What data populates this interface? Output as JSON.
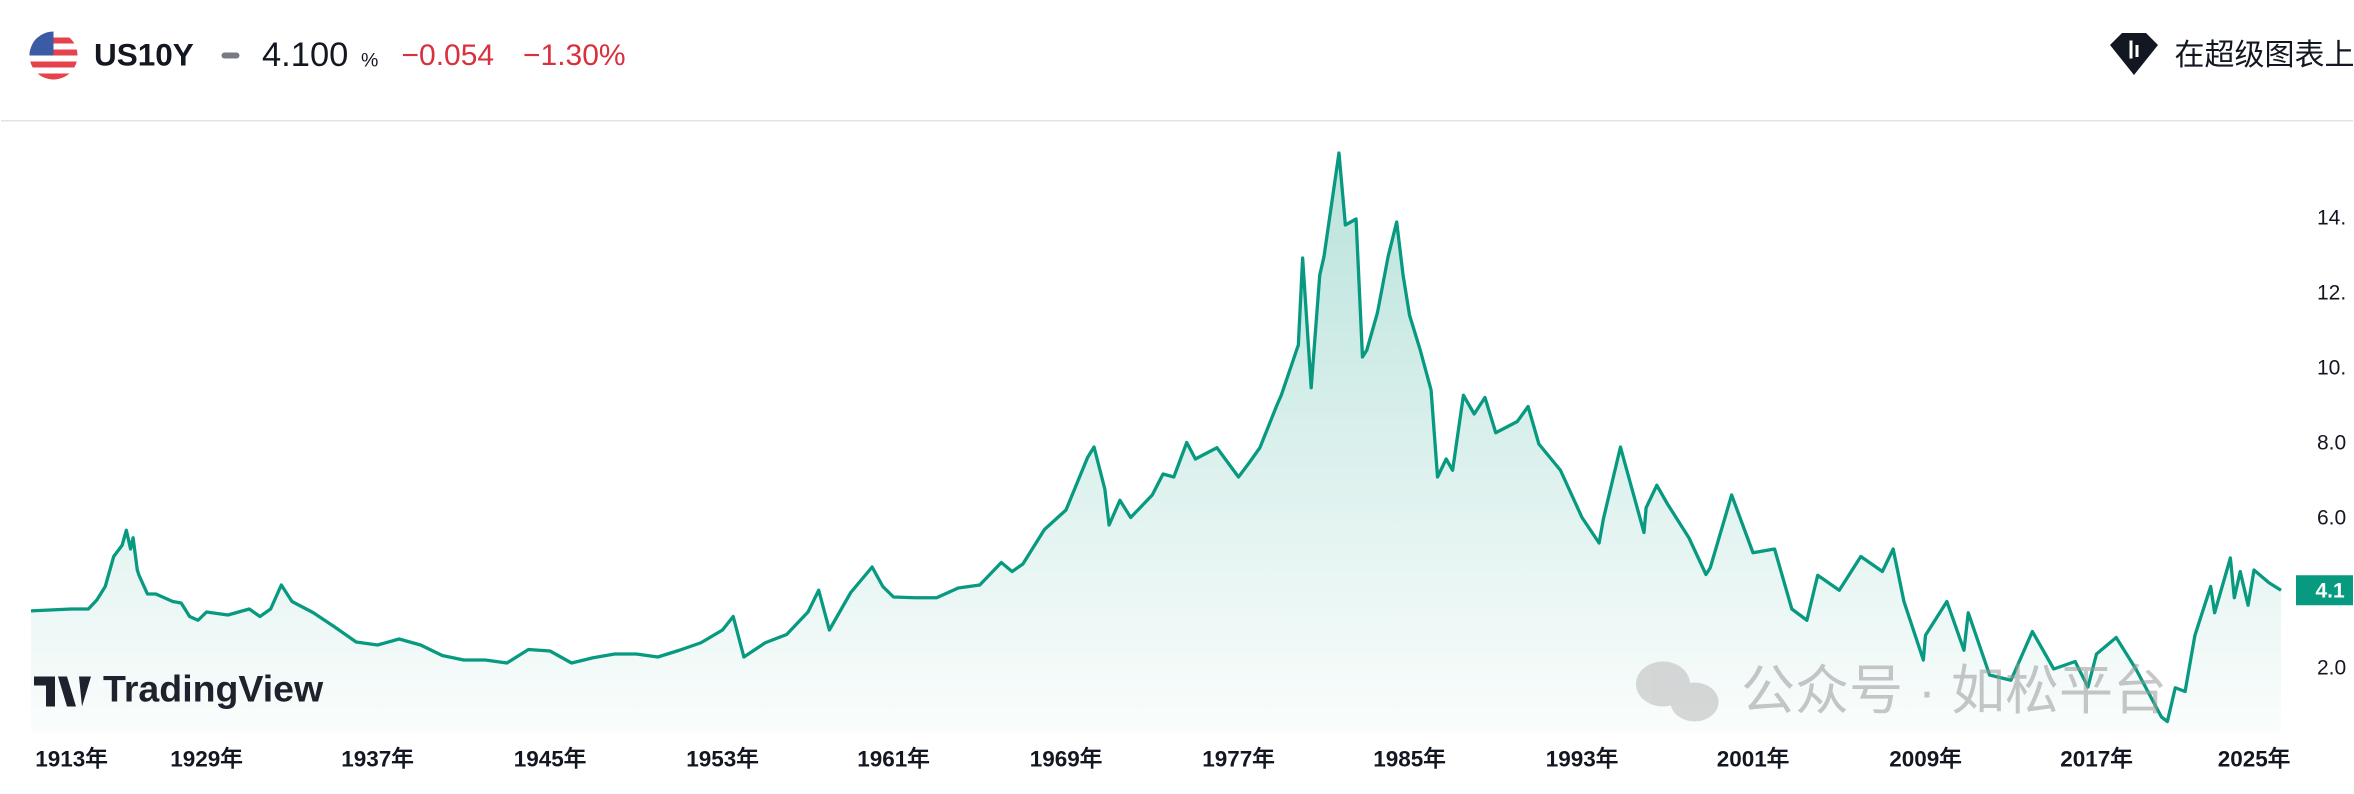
{
  "header": {
    "symbol": "US10Y",
    "price": "4.100",
    "unit": "%",
    "change": "−0.054",
    "change_percent": "−1.30%",
    "action": "在超级图表上"
  },
  "watermarks": [
    "TradingView",
    "公众号 · 如松平台"
  ],
  "chart_data": {
    "type": "line",
    "series": [
      {
        "color": "#089981",
        "x": [
          1912,
          1913,
          1914,
          1915,
          1916,
          1917,
          1918,
          1919,
          1919.5,
          1920,
          1920.3,
          1920.8,
          1921,
          1922,
          1923,
          1924,
          1925,
          1926,
          1927,
          1928,
          1929,
          1930,
          1931,
          1931.5,
          1932,
          1932.5,
          1933,
          1934,
          1935,
          1936,
          1937,
          1938,
          1939,
          1940,
          1941,
          1942,
          1943,
          1944,
          1945,
          1946,
          1947,
          1948,
          1949,
          1950,
          1951,
          1952,
          1953,
          1953.5,
          1954,
          1955,
          1956,
          1957,
          1957.5,
          1958,
          1959,
          1960,
          1960.5,
          1961,
          1962,
          1963,
          1964,
          1965,
          1966,
          1966.5,
          1967,
          1968,
          1969,
          1970,
          1970.3,
          1970.8,
          1971,
          1971.5,
          1972,
          1973,
          1973.5,
          1974,
          1974.6,
          1975,
          1976,
          1977,
          1977.5,
          1978,
          1978.8,
          1979,
          1979.8,
          1980,
          1980.4,
          1980.8,
          1981,
          1981.7,
          1982,
          1982.5,
          1982.8,
          1983,
          1983.5,
          1984,
          1984.4,
          1984.7,
          1985,
          1985.5,
          1986,
          1986.3,
          1986.7,
          1987,
          1987.5,
          1988,
          1988.5,
          1989,
          1990,
          1990.5,
          1991,
          1992,
          1993,
          1993.8,
          1994,
          1994.8,
          1995,
          1995.9,
          1996,
          1996.5,
          1997,
          1998,
          1998.8,
          1999,
          2000,
          2001,
          2002,
          2002.8,
          2003.5,
          2004,
          2005,
          2006,
          2007,
          2007.5,
          2008,
          2008.9,
          2009,
          2010,
          2010.8,
          2011,
          2012,
          2013,
          2014,
          2015,
          2016,
          2016.6,
          2017,
          2018,
          2019,
          2020.3,
          2020.6,
          2021,
          2021.5,
          2022,
          2022.8,
          2023,
          2023.8,
          2024,
          2024.3,
          2024.7,
          2025,
          2025.5,
          2025.9
        ],
        "values": [
          3.55,
          3.6,
          3.6,
          3.6,
          3.84,
          4.2,
          5.0,
          5.3,
          5.7,
          5.2,
          5.5,
          4.64,
          4.5,
          4.0,
          4.0,
          3.9,
          3.8,
          3.76,
          3.4,
          3.3,
          3.52,
          3.44,
          3.6,
          3.4,
          3.6,
          4.24,
          3.8,
          3.5,
          3.12,
          2.72,
          2.64,
          2.8,
          2.64,
          2.36,
          2.24,
          2.24,
          2.16,
          2.52,
          2.48,
          2.16,
          2.3,
          2.4,
          2.4,
          2.32,
          2.5,
          2.7,
          3.04,
          3.4,
          2.32,
          2.7,
          2.92,
          3.52,
          4.1,
          3.04,
          4.04,
          4.72,
          4.2,
          3.92,
          3.9,
          3.9,
          4.16,
          4.24,
          4.84,
          4.6,
          4.8,
          5.72,
          6.24,
          7.64,
          7.92,
          6.8,
          5.84,
          6.5,
          6.04,
          6.64,
          7.2,
          7.12,
          8.04,
          7.6,
          7.9,
          7.12,
          7.5,
          7.9,
          9.04,
          9.3,
          10.64,
          12.96,
          9.5,
          12.5,
          13.0,
          15.76,
          13.84,
          14.0,
          10.32,
          10.5,
          11.5,
          13.0,
          13.92,
          12.5,
          11.44,
          10.5,
          9.44,
          7.12,
          7.6,
          7.3,
          9.3,
          8.8,
          9.24,
          8.3,
          8.6,
          9.0,
          8.0,
          7.3,
          6.04,
          5.36,
          6.0,
          7.92,
          7.5,
          5.64,
          6.3,
          6.9,
          6.4,
          5.5,
          4.52,
          4.7,
          6.64,
          5.1,
          5.2,
          3.6,
          3.3,
          4.5,
          4.1,
          5.0,
          4.6,
          5.2,
          3.8,
          2.24,
          2.9,
          3.8,
          2.5,
          3.5,
          1.84,
          1.7,
          3.0,
          2.0,
          2.2,
          1.52,
          2.4,
          2.84,
          2.0,
          0.72,
          0.6,
          1.5,
          1.4,
          2.9,
          4.2,
          3.5,
          4.96,
          3.9,
          4.6,
          3.7,
          4.64,
          4.3,
          4.1
        ]
      }
    ],
    "current_price_label": "4.1",
    "xlim": [
      1912,
      2025.9
    ],
    "xticks": [
      {
        "value": 1913,
        "label": "1913年"
      },
      {
        "value": 1929,
        "label": "1929年"
      },
      {
        "value": 1937,
        "label": "1937年"
      },
      {
        "value": 1945,
        "label": "1945年"
      },
      {
        "value": 1953,
        "label": "1953年"
      },
      {
        "value": 1961,
        "label": "1961年"
      },
      {
        "value": 1969,
        "label": "1969年"
      },
      {
        "value": 1977,
        "label": "1977年"
      },
      {
        "value": 1985,
        "label": "1985年"
      },
      {
        "value": 1993,
        "label": "1993年"
      },
      {
        "value": 2001,
        "label": "2001年"
      },
      {
        "value": 2009,
        "label": "2009年"
      },
      {
        "value": 2017,
        "label": "2017年"
      },
      {
        "value": 2025,
        "label": "2025年"
      }
    ],
    "ylim": [
      0.3,
      16.6
    ],
    "yticks": [
      {
        "value": 2,
        "label": "2.0"
      },
      {
        "value": 6,
        "label": "6.0"
      },
      {
        "value": 8,
        "label": "8.0"
      },
      {
        "value": 10,
        "label": "10."
      },
      {
        "value": 12,
        "label": "12."
      },
      {
        "value": 14,
        "label": "14."
      }
    ],
    "grid": false
  }
}
